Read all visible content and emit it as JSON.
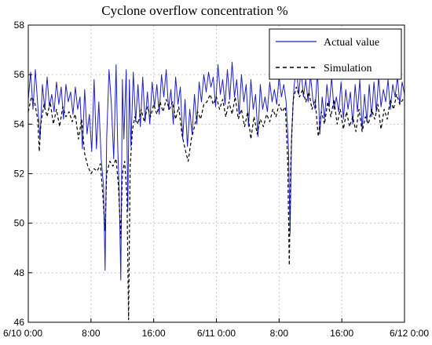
{
  "chart_data": {
    "type": "line",
    "title": "Cyclone overflow concentration  %",
    "xlabel": "",
    "ylabel": "",
    "x_ticks": [
      "6/10 0:00",
      "8:00",
      "16:00",
      "6/11 0:00",
      "8:00",
      "16:00",
      "6/12 0:00"
    ],
    "x_tick_hours": [
      0,
      8,
      16,
      24,
      32,
      40,
      48
    ],
    "xlim_hours": [
      0,
      48
    ],
    "y_ticks": [
      46,
      48,
      50,
      52,
      54,
      56,
      58
    ],
    "ylim": [
      46,
      58
    ],
    "grid": true,
    "legend_position": "top-right",
    "series": [
      {
        "name": "Actual value",
        "color": "#1f1fc8",
        "line_style": "solid",
        "points": [
          [
            0.0,
            55.0
          ],
          [
            0.3,
            56.1
          ],
          [
            0.6,
            54.6
          ],
          [
            0.9,
            56.2
          ],
          [
            1.2,
            54.8
          ],
          [
            1.5,
            53.4
          ],
          [
            1.8,
            55.6
          ],
          [
            2.1,
            54.6
          ],
          [
            2.4,
            55.9
          ],
          [
            2.7,
            54.7
          ],
          [
            3.0,
            55.2
          ],
          [
            3.3,
            54.5
          ],
          [
            3.6,
            55.7
          ],
          [
            3.9,
            54.8
          ],
          [
            4.2,
            55.5
          ],
          [
            4.5,
            54.2
          ],
          [
            4.8,
            55.6
          ],
          [
            5.1,
            54.9
          ],
          [
            5.4,
            55.3
          ],
          [
            5.7,
            54.4
          ],
          [
            6.0,
            55.5
          ],
          [
            6.3,
            54.6
          ],
          [
            6.6,
            55.1
          ],
          [
            6.9,
            53.0
          ],
          [
            7.2,
            55.4
          ],
          [
            7.5,
            53.6
          ],
          [
            7.8,
            54.4
          ],
          [
            8.1,
            52.9
          ],
          [
            8.4,
            55.8
          ],
          [
            8.7,
            53.0
          ],
          [
            9.0,
            54.9
          ],
          [
            9.3,
            52.6
          ],
          [
            9.6,
            51.5
          ],
          [
            9.8,
            48.1
          ],
          [
            10.0,
            53.4
          ],
          [
            10.3,
            56.2
          ],
          [
            10.6,
            54.8
          ],
          [
            10.9,
            52.6
          ],
          [
            11.2,
            56.4
          ],
          [
            11.4,
            53.2
          ],
          [
            11.6,
            51.2
          ],
          [
            11.8,
            47.7
          ],
          [
            12.0,
            55.8
          ],
          [
            12.2,
            53.4
          ],
          [
            12.5,
            56.2
          ],
          [
            12.7,
            50.5
          ],
          [
            12.9,
            55.8
          ],
          [
            13.1,
            53.1
          ],
          [
            13.4,
            56.1
          ],
          [
            13.7,
            54.1
          ],
          [
            14.0,
            55.6
          ],
          [
            14.3,
            53.9
          ],
          [
            14.6,
            55.9
          ],
          [
            14.9,
            54.1
          ],
          [
            15.2,
            55.3
          ],
          [
            15.5,
            54.0
          ],
          [
            15.8,
            55.7
          ],
          [
            16.1,
            54.7
          ],
          [
            16.4,
            55.6
          ],
          [
            16.7,
            54.4
          ],
          [
            17.0,
            56.0
          ],
          [
            17.3,
            55.1
          ],
          [
            17.6,
            56.2
          ],
          [
            17.9,
            54.6
          ],
          [
            18.2,
            55.4
          ],
          [
            18.5,
            54.0
          ],
          [
            18.8,
            55.9
          ],
          [
            19.1,
            54.8
          ],
          [
            19.4,
            55.5
          ],
          [
            19.7,
            53.4
          ],
          [
            20.0,
            55.0
          ],
          [
            20.3,
            53.1
          ],
          [
            20.6,
            54.6
          ],
          [
            20.9,
            53.6
          ],
          [
            21.2,
            55.2
          ],
          [
            21.5,
            54.0
          ],
          [
            21.8,
            55.7
          ],
          [
            22.1,
            54.9
          ],
          [
            22.4,
            56.0
          ],
          [
            22.7,
            55.3
          ],
          [
            23.0,
            56.1
          ],
          [
            23.3,
            55.5
          ],
          [
            23.6,
            55.9
          ],
          [
            23.9,
            54.7
          ],
          [
            24.2,
            56.4
          ],
          [
            24.5,
            55.2
          ],
          [
            24.8,
            55.8
          ],
          [
            25.1,
            54.8
          ],
          [
            25.4,
            56.2
          ],
          [
            25.7,
            55.0
          ],
          [
            26.0,
            56.5
          ],
          [
            26.3,
            55.1
          ],
          [
            26.6,
            55.8
          ],
          [
            26.9,
            54.4
          ],
          [
            27.2,
            56.0
          ],
          [
            27.5,
            54.9
          ],
          [
            27.8,
            55.6
          ],
          [
            28.1,
            53.9
          ],
          [
            28.4,
            55.8
          ],
          [
            28.7,
            54.6
          ],
          [
            29.0,
            55.2
          ],
          [
            29.3,
            53.5
          ],
          [
            29.6,
            55.6
          ],
          [
            29.9,
            54.6
          ],
          [
            30.2,
            55.1
          ],
          [
            30.5,
            54.5
          ],
          [
            30.8,
            55.7
          ],
          [
            31.1,
            54.9
          ],
          [
            31.4,
            55.4
          ],
          [
            31.7,
            54.8
          ],
          [
            32.0,
            55.9
          ],
          [
            32.3,
            55.1
          ],
          [
            32.6,
            55.6
          ],
          [
            32.9,
            54.9
          ],
          [
            33.2,
            53.0
          ],
          [
            33.4,
            49.6
          ],
          [
            33.6,
            53.6
          ],
          [
            33.9,
            55.5
          ],
          [
            34.2,
            56.3
          ],
          [
            34.5,
            55.2
          ],
          [
            34.8,
            56.2
          ],
          [
            35.1,
            55.1
          ],
          [
            35.4,
            55.8
          ],
          [
            35.7,
            54.9
          ],
          [
            36.0,
            56.0
          ],
          [
            36.3,
            55.0
          ],
          [
            36.6,
            54.6
          ],
          [
            36.9,
            56.2
          ],
          [
            37.2,
            53.6
          ],
          [
            37.5,
            55.1
          ],
          [
            37.8,
            54.2
          ],
          [
            38.1,
            55.6
          ],
          [
            38.4,
            54.7
          ],
          [
            38.7,
            55.9
          ],
          [
            39.0,
            54.6
          ],
          [
            39.3,
            55.1
          ],
          [
            39.6,
            54.5
          ],
          [
            39.9,
            55.7
          ],
          [
            40.2,
            54.2
          ],
          [
            40.5,
            55.4
          ],
          [
            40.8,
            54.6
          ],
          [
            41.1,
            55.3
          ],
          [
            41.4,
            54.0
          ],
          [
            41.7,
            55.6
          ],
          [
            42.0,
            54.5
          ],
          [
            42.3,
            55.8
          ],
          [
            42.6,
            53.8
          ],
          [
            42.9,
            55.2
          ],
          [
            43.2,
            54.1
          ],
          [
            43.5,
            55.6
          ],
          [
            43.8,
            54.3
          ],
          [
            44.1,
            55.7
          ],
          [
            44.4,
            54.5
          ],
          [
            44.7,
            55.9
          ],
          [
            45.0,
            54.7
          ],
          [
            45.3,
            55.4
          ],
          [
            45.6,
            54.9
          ],
          [
            45.9,
            55.8
          ],
          [
            46.2,
            54.6
          ],
          [
            46.5,
            55.6
          ],
          [
            46.8,
            55.1
          ],
          [
            47.1,
            55.9
          ],
          [
            47.4,
            54.8
          ],
          [
            47.7,
            55.7
          ],
          [
            48.0,
            55.2
          ]
        ]
      },
      {
        "name": "Simulation",
        "color": "#000000",
        "line_style": "dashed",
        "points": [
          [
            0.0,
            54.5
          ],
          [
            0.4,
            55.1
          ],
          [
            0.8,
            54.9
          ],
          [
            1.2,
            54.2
          ],
          [
            1.4,
            52.9
          ],
          [
            1.6,
            54.0
          ],
          [
            2.0,
            54.8
          ],
          [
            2.4,
            54.3
          ],
          [
            2.8,
            54.9
          ],
          [
            3.2,
            54.0
          ],
          [
            3.6,
            54.6
          ],
          [
            4.0,
            53.9
          ],
          [
            4.4,
            54.7
          ],
          [
            4.8,
            54.3
          ],
          [
            5.2,
            54.5
          ],
          [
            5.6,
            54.1
          ],
          [
            6.0,
            54.4
          ],
          [
            6.4,
            53.4
          ],
          [
            6.8,
            54.2
          ],
          [
            7.2,
            52.8
          ],
          [
            7.6,
            52.3
          ],
          [
            8.0,
            52.0
          ],
          [
            8.4,
            52.2
          ],
          [
            8.8,
            52.1
          ],
          [
            9.2,
            52.4
          ],
          [
            9.5,
            51.2
          ],
          [
            9.8,
            49.7
          ],
          [
            10.0,
            52.0
          ],
          [
            10.4,
            52.5
          ],
          [
            10.8,
            52.3
          ],
          [
            11.2,
            52.6
          ],
          [
            11.5,
            51.5
          ],
          [
            11.8,
            49.4
          ],
          [
            12.0,
            52.0
          ],
          [
            12.3,
            52.5
          ],
          [
            12.6,
            51.0
          ],
          [
            12.8,
            46.1
          ],
          [
            13.0,
            52.3
          ],
          [
            13.3,
            53.8
          ],
          [
            13.6,
            54.3
          ],
          [
            14.0,
            54.0
          ],
          [
            14.4,
            54.6
          ],
          [
            14.8,
            54.1
          ],
          [
            15.2,
            54.7
          ],
          [
            15.6,
            54.3
          ],
          [
            16.0,
            54.8
          ],
          [
            16.4,
            54.4
          ],
          [
            16.8,
            54.9
          ],
          [
            17.2,
            54.5
          ],
          [
            17.6,
            55.0
          ],
          [
            18.0,
            54.6
          ],
          [
            18.4,
            54.9
          ],
          [
            18.8,
            54.2
          ],
          [
            19.2,
            54.7
          ],
          [
            19.6,
            53.6
          ],
          [
            20.0,
            53.0
          ],
          [
            20.4,
            52.5
          ],
          [
            20.8,
            53.4
          ],
          [
            21.2,
            53.9
          ],
          [
            21.6,
            54.5
          ],
          [
            22.0,
            54.2
          ],
          [
            22.4,
            54.8
          ],
          [
            22.8,
            54.9
          ],
          [
            23.2,
            55.2
          ],
          [
            23.6,
            54.8
          ],
          [
            24.0,
            55.1
          ],
          [
            24.4,
            54.6
          ],
          [
            24.8,
            55.0
          ],
          [
            25.2,
            54.3
          ],
          [
            25.6,
            54.9
          ],
          [
            26.0,
            54.4
          ],
          [
            26.4,
            55.1
          ],
          [
            26.8,
            54.2
          ],
          [
            27.2,
            54.6
          ],
          [
            27.6,
            53.9
          ],
          [
            28.0,
            54.5
          ],
          [
            28.4,
            53.4
          ],
          [
            28.8,
            54.3
          ],
          [
            29.2,
            53.6
          ],
          [
            29.6,
            54.2
          ],
          [
            30.0,
            53.9
          ],
          [
            30.4,
            54.4
          ],
          [
            30.8,
            54.1
          ],
          [
            31.2,
            54.6
          ],
          [
            31.6,
            54.3
          ],
          [
            32.0,
            54.8
          ],
          [
            32.4,
            54.5
          ],
          [
            32.8,
            54.7
          ],
          [
            33.1,
            52.5
          ],
          [
            33.3,
            48.3
          ],
          [
            33.5,
            52.6
          ],
          [
            33.8,
            55.0
          ],
          [
            34.2,
            55.5
          ],
          [
            34.6,
            55.1
          ],
          [
            35.0,
            55.4
          ],
          [
            35.4,
            54.9
          ],
          [
            35.8,
            55.3
          ],
          [
            36.2,
            54.6
          ],
          [
            36.6,
            55.0
          ],
          [
            37.0,
            53.5
          ],
          [
            37.4,
            54.5
          ],
          [
            37.8,
            54.0
          ],
          [
            38.2,
            54.9
          ],
          [
            38.6,
            54.3
          ],
          [
            39.0,
            55.0
          ],
          [
            39.4,
            54.0
          ],
          [
            39.8,
            54.6
          ],
          [
            40.2,
            53.8
          ],
          [
            40.6,
            54.5
          ],
          [
            41.0,
            53.9
          ],
          [
            41.4,
            54.3
          ],
          [
            41.8,
            53.7
          ],
          [
            42.2,
            54.6
          ],
          [
            42.6,
            53.7
          ],
          [
            43.0,
            54.3
          ],
          [
            43.4,
            54.0
          ],
          [
            43.8,
            54.6
          ],
          [
            44.2,
            54.2
          ],
          [
            44.6,
            54.8
          ],
          [
            45.0,
            53.8
          ],
          [
            45.4,
            54.6
          ],
          [
            45.8,
            54.2
          ],
          [
            46.2,
            55.0
          ],
          [
            46.6,
            54.6
          ],
          [
            47.0,
            55.2
          ],
          [
            47.4,
            54.8
          ],
          [
            48.0,
            55.1
          ]
        ]
      }
    ]
  }
}
